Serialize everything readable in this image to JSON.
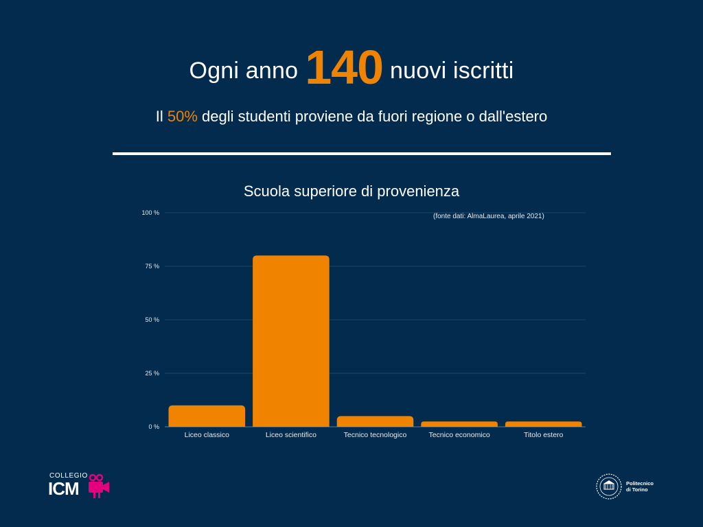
{
  "headline": {
    "pre": "Ogni anno",
    "number": "140",
    "post": "nuovi iscritti"
  },
  "subline": {
    "pre": "Il",
    "percent": "50%",
    "post": "degli studenti proviene da fuori regione o dall'estero"
  },
  "source_note": "(fonte dati: AlmaLaurea, aprile 2021)",
  "logos": {
    "icm_small": "COLLEGIO",
    "icm_big": "ICM",
    "polito_line1": "Politecnico",
    "polito_line2": "di Torino"
  },
  "colors": {
    "background": "#032b4d",
    "accent": "#f08300",
    "text": "#ffffff",
    "grid": "#1d4466"
  },
  "chart_data": {
    "type": "bar",
    "title": "Scuola superiore di provenienza",
    "categories": [
      "Liceo classico",
      "Liceo scientifico",
      "Tecnico tecnologico",
      "Tecnico economico",
      "Titolo estero"
    ],
    "values": [
      10,
      80,
      5,
      2.5,
      2.5
    ],
    "ylim": [
      0,
      100
    ],
    "yticks": [
      "0 %",
      "25 %",
      "50 %",
      "75 %",
      "100 %"
    ],
    "xlabel": "",
    "ylabel": "",
    "grid": true
  }
}
